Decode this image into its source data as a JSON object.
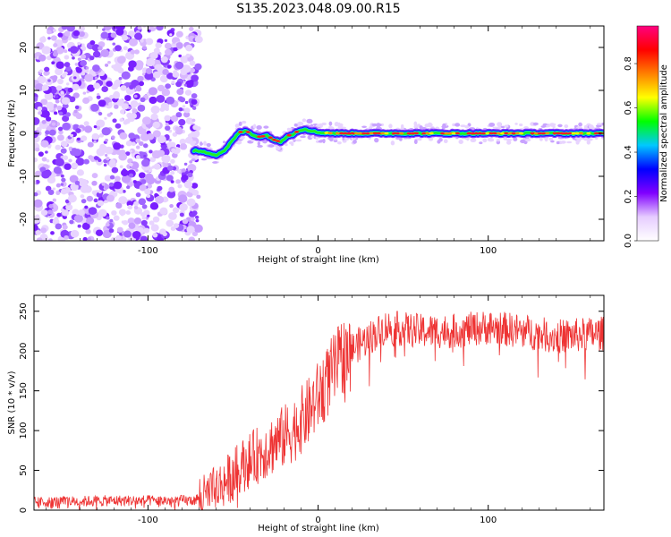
{
  "title": "S135.2023.048.09.00.R15",
  "chart_data": [
    {
      "type": "heatmap",
      "xlabel": "Height of straight line (km)",
      "ylabel": "Frequency (Hz)",
      "xlim": [
        -167,
        168
      ],
      "ylim": [
        -25,
        25
      ],
      "x_ticks": [
        -100,
        0,
        100
      ],
      "y_ticks": [
        -20,
        -10,
        0,
        10,
        20
      ],
      "colorbar": {
        "label": "Normalized spectral amplitude",
        "range": [
          0.0,
          0.97
        ],
        "ticks": [
          "0.0",
          "0.2",
          "0.4",
          "0.6",
          "0.8"
        ],
        "colors": [
          "#ffffff",
          "#e6ccff",
          "#8000ff",
          "#0000ff",
          "#00c8ff",
          "#00ff00",
          "#ffff00",
          "#ff8000",
          "#ff0000",
          "#ff0080"
        ]
      },
      "noise_region_x": [
        -167,
        -73
      ],
      "ridge": {
        "x": [
          -73,
          -65,
          -60,
          -55,
          -50,
          -46,
          -42,
          -38,
          -34,
          -30,
          -26,
          -22,
          -18,
          -15,
          -12,
          -8,
          -4,
          0,
          10,
          30,
          50,
          70,
          90,
          110,
          130,
          150,
          168
        ],
        "y": [
          -4,
          -4.5,
          -5,
          -4,
          -1.5,
          0.3,
          0.5,
          -0.5,
          -0.8,
          -0.5,
          -1.5,
          -2,
          -0.5,
          -0.3,
          0.5,
          1,
          0.6,
          0.2,
          0,
          0,
          0,
          0,
          0,
          0,
          0,
          0,
          0
        ]
      }
    },
    {
      "type": "line",
      "xlabel": "Height of straight line (km)",
      "ylabel": "SNR (10 * v/v)",
      "xlim": [
        -167,
        168
      ],
      "ylim": [
        0,
        270
      ],
      "x_ticks": [
        -100,
        0,
        100
      ],
      "y_ticks": [
        0,
        50,
        100,
        150,
        200,
        250
      ],
      "line_color": "#ee3333",
      "series_profile": {
        "x": [
          -167,
          -120,
          -75,
          -65,
          -55,
          -45,
          -35,
          -25,
          -15,
          -5,
          5,
          15,
          25,
          40,
          60,
          80,
          100,
          120,
          140,
          168
        ],
        "y": [
          10,
          12,
          12,
          18,
          35,
          55,
          70,
          85,
          100,
          125,
          160,
          195,
          210,
          230,
          225,
          225,
          230,
          225,
          218,
          222
        ]
      }
    }
  ]
}
